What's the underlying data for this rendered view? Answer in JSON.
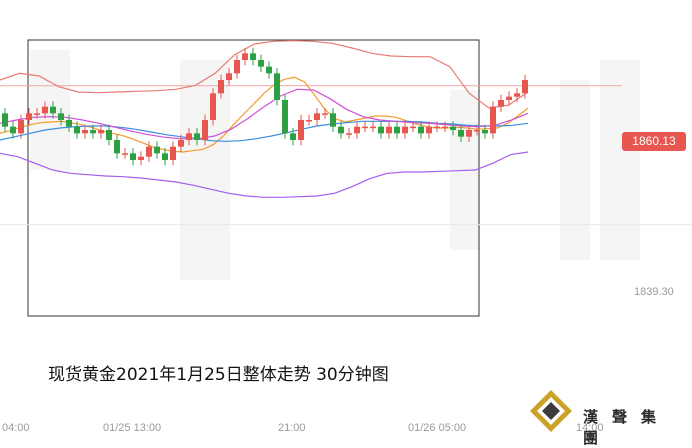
{
  "chart_data": {
    "type": "candlestick",
    "title": "现货黄金2021年1月25日整体走势  30分钟图",
    "price_levels": [
      {
        "label": "1860.13",
        "value": 1860.13,
        "style": "current-price-tag",
        "color": "#e8574f"
      },
      {
        "label": "1839.30",
        "value": 1839.3,
        "style": "plain"
      }
    ],
    "time_labels": [
      "04:00",
      "01/25 13:00",
      "21:00",
      "01/26 05:00",
      "14:00"
    ],
    "y_range": [
      1828,
      1870
    ],
    "colors": {
      "up": "#e8574f",
      "down": "#2ea043",
      "ma_short": "#f29b2c",
      "ma_mid": "#3b8de0",
      "boll_mid": "#d04ed8",
      "boll_upper": "#e87b74",
      "boll_lower": "#a35ef0"
    },
    "series": [
      {
        "kind": "candles",
        "x": [
          0,
          1,
          2,
          3,
          4,
          5,
          6,
          7,
          8,
          9,
          10,
          11,
          12,
          13,
          14,
          15,
          16,
          17,
          17.5,
          18,
          19,
          20,
          21,
          22,
          23,
          24,
          25,
          26,
          27,
          28,
          29,
          30,
          31,
          32,
          33,
          34,
          35,
          36,
          37,
          38,
          39,
          40,
          41,
          42,
          43,
          44,
          45,
          46,
          47,
          48,
          49,
          50,
          51,
          52,
          53,
          54,
          55,
          56,
          57,
          58,
          59,
          60,
          61,
          62,
          63,
          64
        ],
        "open": [
          1856,
          1854,
          1853,
          1855,
          1856,
          1856,
          1857,
          1856,
          1855,
          1854,
          1853,
          1853.5,
          1853,
          1853.5,
          1852,
          1850,
          1850,
          1849,
          1849.5,
          1851,
          1850,
          1849,
          1851,
          1852,
          1853,
          1852,
          1855,
          1859,
          1861,
          1862,
          1864,
          1865,
          1864,
          1863,
          1862,
          1858,
          1853,
          1852,
          1855,
          1855,
          1856,
          1856,
          1854,
          1853,
          1853,
          1854,
          1854,
          1854,
          1853,
          1854,
          1853,
          1854,
          1854,
          1853,
          1854,
          1854,
          1854,
          1853.5,
          1852.5,
          1853.5,
          1853.5,
          1853,
          1857,
          1858,
          1858.5,
          1859
        ],
        "close": [
          1854,
          1853,
          1855,
          1856,
          1856,
          1857,
          1856,
          1855,
          1854,
          1853,
          1853.5,
          1853,
          1853.5,
          1852,
          1850,
          1850,
          1849,
          1849.5,
          1851,
          1850,
          1849,
          1851,
          1852,
          1853,
          1852,
          1855,
          1859,
          1861,
          1862,
          1864,
          1865,
          1864,
          1863,
          1862,
          1858,
          1853,
          1852,
          1855,
          1855,
          1856,
          1856,
          1854,
          1853,
          1853,
          1854,
          1854,
          1854,
          1853,
          1854,
          1853,
          1854,
          1854,
          1853,
          1854,
          1854,
          1854,
          1853.5,
          1852.5,
          1853.5,
          1853.5,
          1853,
          1857,
          1858,
          1858.5,
          1859,
          1861
        ]
      },
      {
        "kind": "line",
        "name": "",
        "values": [
          1853.0,
          1853.4,
          1853.9,
          1854.3,
          1854.6,
          1854.7,
          1854.8,
          1854.6,
          1854.3,
          1853.9,
          1853.4,
          1853.0,
          1852.7,
          1852.2,
          1851.6,
          1851.0,
          1850.6,
          1850.3,
          1850.2,
          1850.4,
          1850.6,
          1851.3,
          1852.6,
          1854.3,
          1855.9,
          1857.4,
          1859.0,
          1860.3,
          1861.1,
          1861.4,
          1860.7,
          1858.7,
          1856.6,
          1855.2,
          1854.7,
          1855.0,
          1855.3,
          1855.6,
          1855.6,
          1855.4,
          1854.9,
          1854.4,
          1854.0,
          1853.8,
          1853.8,
          1853.9,
          1853.8,
          1853.6,
          1853.7,
          1853.8,
          1854.5,
          1855.6,
          1856.8
        ]
      },
      {
        "kind": "line",
        "name": "",
        "values": [
          1852.0,
          1852.5,
          1853.0,
          1853.5,
          1853.8,
          1854.0,
          1854.1,
          1854.1,
          1853.9,
          1853.6,
          1853.2,
          1852.8,
          1852.5,
          1852.2,
          1851.9,
          1851.8,
          1851.9,
          1852.2,
          1852.6,
          1853.1,
          1853.6,
          1854.1,
          1854.4,
          1854.6,
          1854.8,
          1854.8,
          1854.8,
          1854.8,
          1854.7,
          1854.5,
          1854.4,
          1854.2,
          1854.1,
          1854.1,
          1854.2,
          1854.5
        ]
      },
      {
        "kind": "line",
        "name": "",
        "values": [
          1854.5,
          1855.0,
          1855.4,
          1855.5,
          1855.4,
          1855.0,
          1854.5,
          1853.9,
          1853.3,
          1852.8,
          1852.4,
          1852.2,
          1852.2,
          1852.6,
          1853.6,
          1855.2,
          1857.0,
          1858.6,
          1859.6,
          1859.5,
          1858.2,
          1856.6,
          1855.5,
          1855.0,
          1854.8,
          1854.6,
          1854.5,
          1854.3,
          1854.1,
          1854.0,
          1854.2,
          1855.0,
          1856.0
        ]
      },
      {
        "kind": "line",
        "name": "",
        "values": [
          1861.0,
          1862.0,
          1861.6,
          1860.0,
          1859.2,
          1859.1,
          1859.2,
          1859.3,
          1859.4,
          1859.6,
          1860.2,
          1862.0,
          1864.8,
          1866.4,
          1866.8,
          1866.9,
          1866.8,
          1866.5,
          1865.8,
          1865.0,
          1864.6,
          1864.5,
          1864.5,
          1863.0,
          1859.0,
          1856.8,
          1857.2,
          1859.2
        ]
      },
      {
        "kind": "line",
        "name": "",
        "values": [
          1850.0,
          1849.5,
          1848.5,
          1847.5,
          1847.0,
          1846.8,
          1846.6,
          1846.5,
          1846.3,
          1846.0,
          1845.7,
          1845.2,
          1844.6,
          1844.0,
          1843.6,
          1843.4,
          1843.4,
          1843.5,
          1843.6,
          1844.0,
          1845.0,
          1846.2,
          1847.0,
          1847.2,
          1847.2,
          1847.3,
          1847.4,
          1847.5,
          1848.5,
          1849.8,
          1850.2
        ]
      }
    ]
  },
  "logo": {
    "text": "漢聲集團",
    "icon": "diamond-logo-icon"
  }
}
